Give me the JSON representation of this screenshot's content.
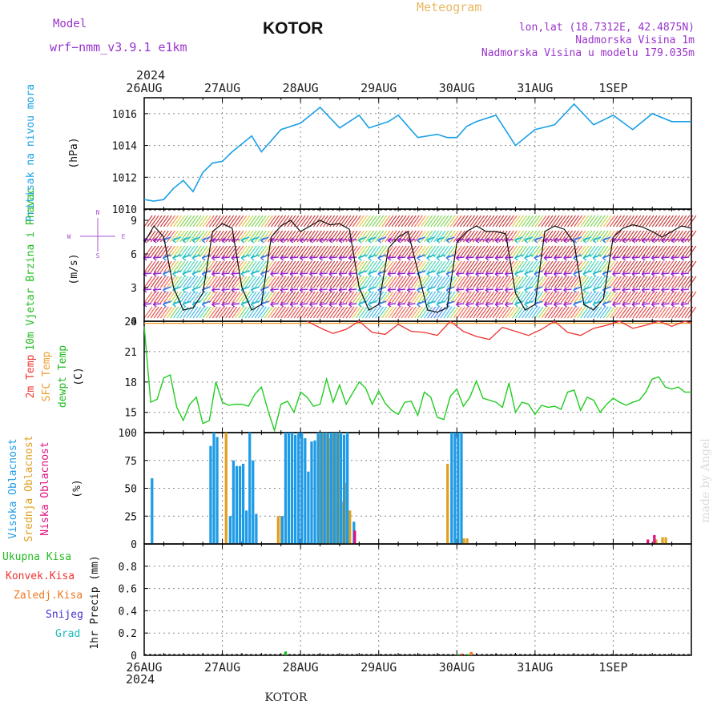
{
  "header": {
    "model_label": "Model",
    "model_name": "wrf−nmm_v3.9.1  e1km",
    "city": "KOTOR",
    "product": "Meteogram",
    "lonlat": "lon,lat (18.7312E, 42.4875N)",
    "altitude": "Nadmorska Visina 1m",
    "model_altitude": "Nadmorska Visina u modelu 179.035m",
    "credit": "made by Angel",
    "footer_city": "KOTOR"
  },
  "colors": {
    "pressure": "#1aa0e6",
    "wind_label": "#22bb22",
    "high_cloud": "#1e9be6",
    "mid_cloud": "#e0a020",
    "low_cloud": "#e01080",
    "temp2m": "#ee3333",
    "sfc_temp": "#e8a030",
    "dewpoint": "#22cc22",
    "rain_total": "#22bb22",
    "rain_conv": "#ee3333",
    "freezing": "#ee7722",
    "snow": "#4433cc",
    "graupel": "#22bbbb",
    "title_orange": "#e8b860",
    "title_purple": "#9933cc"
  },
  "chart_data": [
    {
      "id": "pressure",
      "type": "line",
      "ylabel": "Pritisak na nivou mora",
      "unit": "(hPa)",
      "ylim": [
        1010,
        1017
      ],
      "yticks": [
        1010,
        1012,
        1014,
        1016
      ],
      "x_hours": [
        0,
        3,
        6,
        9,
        12,
        15,
        18,
        21,
        24,
        27,
        30,
        33,
        36,
        42,
        48,
        51,
        54,
        60,
        66,
        69,
        72,
        75,
        78,
        84,
        90,
        93,
        96,
        99,
        102,
        108,
        114,
        120,
        126,
        132,
        138,
        144,
        150,
        156,
        162,
        168
      ],
      "values": [
        1010.6,
        1010.5,
        1010.6,
        1011.3,
        1011.8,
        1011.1,
        1012.3,
        1012.9,
        1013.0,
        1013.6,
        1014.1,
        1014.6,
        1013.6,
        1015.0,
        1015.4,
        1015.9,
        1016.4,
        1015.1,
        1015.9,
        1015.1,
        1015.3,
        1015.5,
        1015.9,
        1014.5,
        1014.7,
        1014.5,
        1014.5,
        1015.2,
        1015.5,
        1015.9,
        1014.0,
        1015.0,
        1015.3,
        1016.6,
        1015.3,
        1015.9,
        1015.0,
        1016.0,
        1015.5,
        1015.5
      ]
    },
    {
      "id": "wind",
      "type": "line",
      "ylabel": "10m Vjetar Brzina i Pravac",
      "unit": "(m/s)",
      "ylim": [
        0,
        10
      ],
      "yticks": [
        0,
        3,
        6,
        9
      ],
      "compass": {
        "north": "N",
        "south": "S",
        "west": "W",
        "east": "E"
      },
      "x_hours": [
        0,
        3,
        6,
        9,
        12,
        15,
        18,
        21,
        24,
        27,
        30,
        33,
        36,
        39,
        42,
        45,
        48,
        51,
        54,
        57,
        60,
        63,
        66,
        69,
        72,
        75,
        78,
        81,
        84,
        87,
        90,
        93,
        96,
        99,
        102,
        105,
        108,
        111,
        114,
        117,
        120,
        123,
        126,
        129,
        132,
        135,
        138,
        141,
        144,
        147,
        150,
        153,
        156,
        159,
        162,
        165,
        168
      ],
      "values": [
        7.0,
        8.5,
        7.5,
        3.0,
        1.0,
        1.2,
        2.5,
        8.0,
        8.7,
        8.3,
        3.0,
        1.0,
        1.5,
        7.5,
        8.5,
        9.0,
        8.0,
        8.5,
        9.0,
        8.6,
        8.7,
        8.2,
        3.0,
        1.0,
        1.5,
        6.5,
        7.5,
        8.0,
        4.5,
        1.0,
        0.8,
        1.2,
        7.0,
        8.0,
        8.5,
        8.0,
        8.0,
        7.8,
        2.5,
        1.0,
        1.5,
        8.0,
        8.5,
        8.2,
        7.0,
        1.5,
        1.0,
        2.0,
        7.5,
        8.3,
        8.6,
        8.4,
        8.0,
        7.5,
        8.0,
        8.5,
        8.3
      ]
    },
    {
      "id": "temperature",
      "type": "line",
      "ylabel_lines": [
        "2m Temp",
        "SFC Temp",
        "dewpt Temp"
      ],
      "unit": "(C)",
      "ylim": [
        13,
        24
      ],
      "yticks": [
        15,
        18,
        21,
        24
      ],
      "sfc_temp_value": 23.8,
      "series": [
        {
          "name": "2m Temp",
          "x_hours": [
            50,
            55,
            58,
            62,
            66,
            70,
            74,
            78,
            82,
            86,
            90,
            94,
            98,
            102,
            106,
            110,
            114,
            118,
            122,
            126,
            130,
            134,
            138,
            142,
            146,
            150,
            154,
            158,
            162,
            166,
            168
          ],
          "values": [
            24.0,
            23.2,
            22.8,
            23.2,
            24.0,
            22.9,
            22.7,
            23.7,
            23.0,
            22.9,
            22.6,
            24.0,
            23.0,
            22.5,
            22.2,
            23.4,
            23.0,
            22.6,
            23.2,
            24.0,
            22.9,
            22.6,
            23.3,
            23.6,
            24.0,
            23.3,
            23.6,
            24.0,
            23.5,
            24.0,
            23.8
          ]
        },
        {
          "name": "dewpt Temp",
          "x_hours": [
            0,
            2,
            4,
            6,
            8,
            10,
            12,
            14,
            16,
            18,
            20,
            22,
            24,
            26,
            28,
            30,
            32,
            34,
            36,
            38,
            40,
            42,
            44,
            46,
            48,
            50,
            52,
            54,
            56,
            58,
            60,
            62,
            64,
            66,
            68,
            70,
            72,
            74,
            76,
            78,
            80,
            82,
            84,
            86,
            88,
            90,
            92,
            94,
            96,
            98,
            100,
            102,
            104,
            106,
            108,
            110,
            112,
            114,
            116,
            118,
            120,
            122,
            124,
            126,
            128,
            130,
            132,
            134,
            136,
            138,
            140,
            142,
            144,
            146,
            148,
            150,
            152,
            154,
            156,
            158,
            160,
            162,
            164,
            166,
            168
          ],
          "values": [
            23.5,
            16.0,
            16.3,
            18.4,
            18.7,
            15.5,
            14.2,
            15.8,
            16.5,
            13.9,
            14.2,
            18.0,
            16.0,
            15.7,
            15.8,
            15.8,
            15.6,
            16.8,
            17.5,
            15.2,
            13.2,
            15.8,
            16.1,
            15.0,
            17.0,
            16.5,
            15.6,
            15.8,
            18.3,
            16.0,
            17.7,
            15.8,
            16.9,
            18.0,
            17.4,
            15.8,
            17.1,
            15.9,
            15.2,
            14.8,
            16.0,
            16.1,
            14.7,
            17.0,
            16.5,
            14.5,
            14.3,
            16.6,
            17.3,
            15.6,
            16.5,
            18.1,
            16.4,
            16.2,
            16.0,
            15.5,
            17.9,
            15.0,
            16.0,
            15.8,
            14.8,
            15.7,
            15.5,
            15.6,
            15.3,
            17.0,
            17.2,
            15.2,
            16.5,
            16.2,
            15.0,
            15.8,
            16.4,
            16.0,
            15.7,
            16.0,
            16.2,
            17.0,
            18.3,
            18.5,
            17.5,
            17.3,
            17.5,
            17.0,
            17.0
          ]
        }
      ]
    },
    {
      "id": "cloud",
      "type": "bar",
      "ylabel_lines": [
        "Visoka Oblacnost",
        "Srednja Oblacnost",
        "Niska Oblacnost"
      ],
      "unit": "(%)",
      "ylim": [
        0,
        100
      ],
      "yticks": [
        0,
        25,
        50,
        75,
        100
      ],
      "high": [
        [
          2,
          59
        ],
        [
          20,
          88
        ],
        [
          21,
          100
        ],
        [
          22,
          96
        ],
        [
          26,
          25
        ],
        [
          27,
          75
        ],
        [
          28,
          70
        ],
        [
          29,
          70
        ],
        [
          30,
          72
        ],
        [
          31,
          30
        ],
        [
          32,
          100
        ],
        [
          33,
          75
        ],
        [
          34,
          27
        ],
        [
          42,
          25
        ],
        [
          43,
          100
        ],
        [
          44,
          100
        ],
        [
          45,
          100
        ],
        [
          46,
          98
        ],
        [
          47,
          100
        ],
        [
          48,
          100
        ],
        [
          49,
          95
        ],
        [
          50,
          65
        ],
        [
          51,
          92
        ],
        [
          52,
          93
        ],
        [
          53,
          100
        ],
        [
          54,
          100
        ],
        [
          55,
          100
        ],
        [
          56,
          100
        ],
        [
          57,
          100
        ],
        [
          58,
          100
        ],
        [
          59,
          100
        ],
        [
          60,
          100
        ],
        [
          61,
          98
        ],
        [
          62,
          100
        ],
        [
          64,
          20
        ],
        [
          94,
          100
        ],
        [
          95,
          100
        ],
        [
          96,
          100
        ],
        [
          97,
          100
        ]
      ],
      "mid": [
        [
          25,
          100
        ],
        [
          41,
          25
        ],
        [
          42,
          25
        ],
        [
          54,
          100
        ],
        [
          55,
          100
        ],
        [
          56,
          100
        ],
        [
          57,
          95
        ],
        [
          58,
          100
        ],
        [
          59,
          100
        ],
        [
          60,
          100
        ],
        [
          61,
          38
        ],
        [
          62,
          55
        ],
        [
          63,
          30
        ],
        [
          93,
          72
        ],
        [
          98,
          5
        ],
        [
          99,
          5
        ],
        [
          157,
          4
        ],
        [
          159,
          6
        ],
        [
          160,
          6
        ]
      ],
      "low": [
        [
          64,
          12
        ],
        [
          154,
          4
        ],
        [
          156,
          8
        ]
      ]
    },
    {
      "id": "precip",
      "type": "bar",
      "ylabel": "1hr Precip",
      "unit": "(mm)",
      "ylim": [
        0,
        1
      ],
      "yticks": [
        0,
        0.2,
        0.4,
        0.6,
        0.8
      ],
      "legend": [
        "Ukupna Kisa",
        "Konvek.Kisa",
        "Zaledj.Kisa",
        "Snijeg",
        "Grad"
      ],
      "total": [
        [
          43,
          0.035
        ],
        [
          96,
          0.01
        ],
        [
          99,
          0.012
        ]
      ],
      "convective": [
        [
          97,
          0.015
        ],
        [
          100,
          0.02
        ]
      ],
      "freezing": [
        [
          100,
          0.03
        ]
      ]
    }
  ],
  "time_axis": {
    "year": "2024",
    "hours": 168,
    "labels": [
      "26AUG",
      "27AUG",
      "28AUG",
      "29AUG",
      "30AUG",
      "31AUG",
      "1SEP"
    ]
  }
}
